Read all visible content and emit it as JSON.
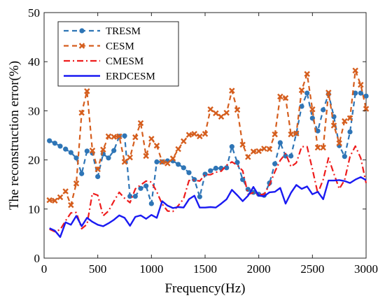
{
  "chart_data": {
    "type": "line",
    "xlabel": "Frequency(Hz)",
    "ylabel": "The reconstruction error(%)",
    "xlim": [
      0,
      3000
    ],
    "ylim": [
      0,
      50
    ],
    "x_ticks": [
      0,
      500,
      1000,
      1500,
      2000,
      2500,
      3000
    ],
    "y_ticks": [
      0,
      10,
      20,
      30,
      40,
      50
    ],
    "x_tick_labels": [
      "0",
      "500",
      "1000",
      "1500",
      "2000",
      "2500",
      "3000"
    ],
    "y_tick_labels": [
      "0",
      "10",
      "20",
      "30",
      "40",
      "50"
    ],
    "grid": false,
    "legend_position": "top-left",
    "series": [
      {
        "name": "TRESM",
        "color": "#2E75B6",
        "line_style": "dashed",
        "marker": "circle",
        "x": [
          50,
          100,
          150,
          200,
          250,
          300,
          350,
          400,
          450,
          500,
          550,
          600,
          650,
          700,
          750,
          800,
          850,
          900,
          950,
          1000,
          1050,
          1100,
          1150,
          1200,
          1250,
          1300,
          1350,
          1400,
          1450,
          1500,
          1550,
          1600,
          1650,
          1700,
          1750,
          1800,
          1850,
          1900,
          1950,
          2000,
          2050,
          2100,
          2150,
          2200,
          2250,
          2300,
          2350,
          2400,
          2450,
          2500,
          2550,
          2600,
          2650,
          2700,
          2750,
          2800,
          2850,
          2900,
          2950,
          3000
        ],
        "y": [
          23.9,
          23.4,
          22.8,
          22.2,
          21.5,
          20.4,
          17.2,
          21.8,
          21.4,
          16.6,
          21.2,
          20.4,
          21.9,
          24.8,
          24.9,
          12.6,
          12.6,
          14.2,
          14.7,
          11.1,
          19.6,
          19.6,
          19.8,
          19.8,
          19.1,
          18.4,
          17.4,
          16.0,
          12.5,
          17.1,
          17.8,
          18.3,
          18.3,
          18.4,
          22.7,
          19.5,
          16.0,
          14.0,
          13.4,
          13.0,
          12.8,
          15.3,
          19.2,
          23.5,
          20.8,
          20.8,
          25.4,
          30.9,
          33.6,
          28.5,
          25.9,
          30.2,
          33.4,
          28.8,
          22.9,
          20.7,
          25.7,
          33.6,
          33.6,
          33.0
        ]
      },
      {
        "name": "CESM",
        "color": "#D55E1E",
        "line_style": "dashed",
        "marker": "x",
        "x": [
          50,
          100,
          150,
          200,
          250,
          300,
          350,
          400,
          450,
          500,
          550,
          600,
          650,
          700,
          750,
          800,
          850,
          900,
          950,
          1000,
          1050,
          1100,
          1150,
          1200,
          1250,
          1300,
          1350,
          1400,
          1450,
          1500,
          1550,
          1600,
          1650,
          1700,
          1750,
          1800,
          1850,
          1900,
          1950,
          2000,
          2050,
          2100,
          2150,
          2200,
          2250,
          2300,
          2350,
          2400,
          2450,
          2500,
          2550,
          2600,
          2650,
          2700,
          2750,
          2800,
          2850,
          2900,
          2950,
          3000
        ],
        "y": [
          11.8,
          11.7,
          12.4,
          13.6,
          10.8,
          15.2,
          29.6,
          34.0,
          21.9,
          18.1,
          22.1,
          24.8,
          24.7,
          24.8,
          19.6,
          20.5,
          24.6,
          27.5,
          20.8,
          24.3,
          22.9,
          19.6,
          19.3,
          20.3,
          22.2,
          23.8,
          25.1,
          25.3,
          24.8,
          25.3,
          30.3,
          29.5,
          28.8,
          29.6,
          34.1,
          30.2,
          23.1,
          20.6,
          21.7,
          21.8,
          22.3,
          22.2,
          25.2,
          32.9,
          32.6,
          25.2,
          25.4,
          34.2,
          37.5,
          30.3,
          22.5,
          22.5,
          33.7,
          27.0,
          23.4,
          27.9,
          28.5,
          38.2,
          35.3,
          30.4
        ]
      },
      {
        "name": "CMESM",
        "color": "#EE1C1C",
        "line_style": "dashdot",
        "marker": "none",
        "x": [
          50,
          100,
          150,
          200,
          250,
          300,
          350,
          400,
          450,
          500,
          550,
          600,
          650,
          700,
          750,
          800,
          850,
          900,
          950,
          1000,
          1050,
          1100,
          1150,
          1200,
          1250,
          1300,
          1350,
          1400,
          1450,
          1500,
          1550,
          1600,
          1650,
          1700,
          1750,
          1800,
          1850,
          1900,
          1950,
          2000,
          2050,
          2100,
          2150,
          2200,
          2250,
          2300,
          2350,
          2400,
          2450,
          2500,
          2550,
          2600,
          2650,
          2700,
          2750,
          2800,
          2850,
          2900,
          2950,
          3000
        ],
        "y": [
          5.9,
          5.4,
          5.8,
          7.6,
          9.2,
          9.3,
          6.0,
          6.9,
          13.2,
          12.8,
          8.6,
          9.6,
          11.6,
          13.4,
          12.2,
          11.3,
          14.1,
          14.9,
          15.7,
          15.5,
          13.5,
          11.0,
          9.6,
          9.5,
          10.7,
          12.1,
          15.8,
          15.9,
          15.7,
          17.0,
          17.0,
          17.5,
          17.7,
          18.9,
          19.6,
          18.9,
          17.8,
          13.0,
          13.3,
          12.9,
          13.0,
          14.9,
          17.6,
          19.9,
          21.3,
          18.6,
          19.4,
          22.7,
          22.7,
          18.1,
          13.2,
          16.0,
          20.4,
          17.2,
          14.1,
          15.9,
          20.7,
          22.8,
          20.4,
          15.3
        ]
      },
      {
        "name": "ERDCESM",
        "color": "#1A1AF2",
        "line_style": "solid",
        "marker": "none",
        "x": [
          50,
          100,
          150,
          200,
          250,
          300,
          350,
          400,
          450,
          500,
          550,
          600,
          650,
          700,
          750,
          800,
          850,
          900,
          950,
          1000,
          1050,
          1100,
          1150,
          1200,
          1250,
          1300,
          1350,
          1400,
          1450,
          1500,
          1550,
          1600,
          1650,
          1700,
          1750,
          1800,
          1850,
          1900,
          1950,
          2000,
          2050,
          2100,
          2150,
          2200,
          2250,
          2300,
          2350,
          2400,
          2450,
          2500,
          2550,
          2600,
          2650,
          2700,
          2750,
          2800,
          2850,
          2900,
          2950,
          3000
        ],
        "y": [
          6.1,
          5.6,
          4.3,
          7.3,
          6.8,
          8.6,
          6.5,
          8.2,
          7.4,
          6.8,
          6.5,
          7.1,
          7.8,
          8.7,
          8.2,
          6.6,
          8.4,
          8.7,
          8.0,
          8.8,
          8.2,
          11.6,
          10.7,
          10.2,
          10.4,
          10.3,
          12.0,
          12.7,
          10.3,
          10.3,
          10.4,
          10.3,
          11.1,
          12.0,
          13.9,
          12.8,
          11.6,
          12.7,
          14.5,
          12.7,
          12.6,
          13.4,
          13.5,
          14.3,
          11.1,
          13.3,
          14.9,
          14.1,
          14.6,
          13.0,
          13.5,
          12.0,
          15.8,
          15.8,
          15.9,
          15.7,
          15.3,
          16.0,
          16.5,
          15.9
        ]
      }
    ]
  }
}
